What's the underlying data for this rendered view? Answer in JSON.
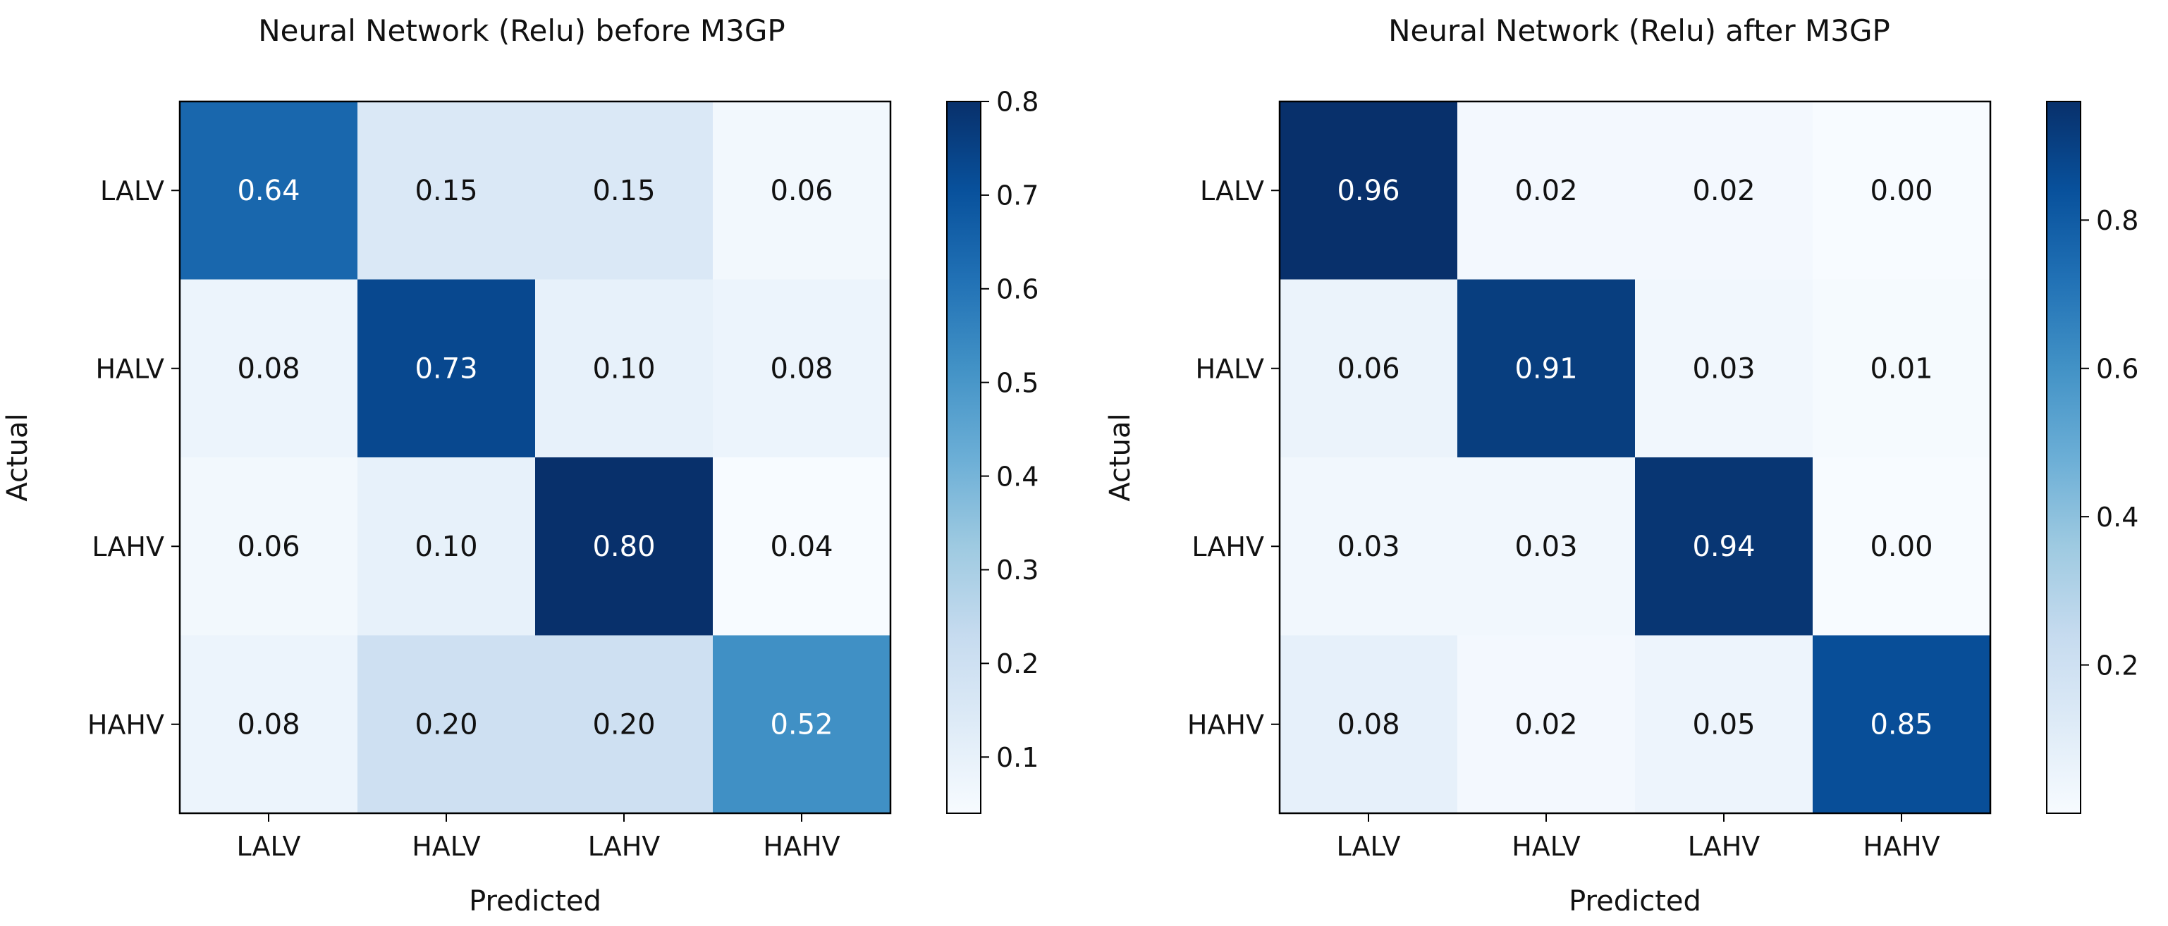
{
  "chart_data": [
    {
      "type": "heatmap",
      "title": "Neural Network (Relu) before M3GP",
      "xlabel": "Predicted",
      "ylabel": "Actual",
      "row_labels": [
        "LALV",
        "HALV",
        "LAHV",
        "HAHV"
      ],
      "col_labels": [
        "LALV",
        "HALV",
        "LAHV",
        "HAHV"
      ],
      "values": [
        [
          0.64,
          0.15,
          0.15,
          0.06
        ],
        [
          0.08,
          0.73,
          0.1,
          0.08
        ],
        [
          0.06,
          0.1,
          0.8,
          0.04
        ],
        [
          0.08,
          0.2,
          0.2,
          0.52
        ]
      ],
      "cell_labels": [
        [
          "0.64",
          "0.15",
          "0.15",
          "0.06"
        ],
        [
          "0.08",
          "0.73",
          "0.10",
          "0.08"
        ],
        [
          "0.06",
          "0.10",
          "0.80",
          "0.04"
        ],
        [
          "0.08",
          "0.20",
          "0.20",
          "0.52"
        ]
      ],
      "colorbar": {
        "vmin": 0.04,
        "vmax": 0.8,
        "ticks": [
          0.1,
          0.2,
          0.3,
          0.4,
          0.5,
          0.6,
          0.7,
          0.8
        ],
        "tick_labels": [
          "0.1",
          "0.2",
          "0.3",
          "0.4",
          "0.5",
          "0.6",
          "0.7",
          "0.8"
        ]
      },
      "colormap": "Blues"
    },
    {
      "type": "heatmap",
      "title": "Neural Network (Relu) after M3GP",
      "xlabel": "Predicted",
      "ylabel": "Actual",
      "row_labels": [
        "LALV",
        "HALV",
        "LAHV",
        "HAHV"
      ],
      "col_labels": [
        "LALV",
        "HALV",
        "LAHV",
        "HAHV"
      ],
      "values": [
        [
          0.96,
          0.02,
          0.02,
          0.0
        ],
        [
          0.06,
          0.91,
          0.03,
          0.01
        ],
        [
          0.03,
          0.03,
          0.94,
          0.0
        ],
        [
          0.08,
          0.02,
          0.05,
          0.85
        ]
      ],
      "cell_labels": [
        [
          "0.96",
          "0.02",
          "0.02",
          "0.00"
        ],
        [
          "0.06",
          "0.91",
          "0.03",
          "0.01"
        ],
        [
          "0.03",
          "0.03",
          "0.94",
          "0.00"
        ],
        [
          "0.08",
          "0.02",
          "0.05",
          "0.85"
        ]
      ],
      "colorbar": {
        "vmin": 0.0,
        "vmax": 0.96,
        "ticks": [
          0.2,
          0.4,
          0.6,
          0.8
        ],
        "tick_labels": [
          "0.2",
          "0.4",
          "0.6",
          "0.8"
        ]
      },
      "colormap": "Blues"
    }
  ]
}
